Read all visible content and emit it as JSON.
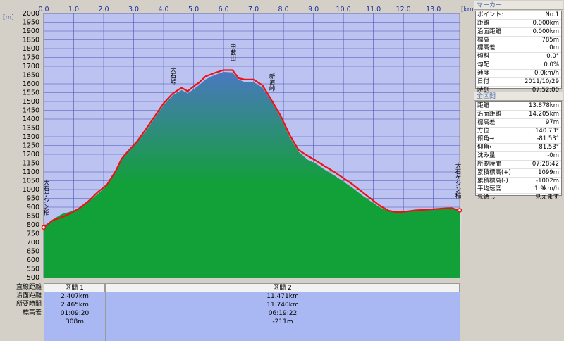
{
  "chart_data": {
    "type": "area",
    "x_unit_label": "[km]",
    "y_unit_label": "[m]",
    "xlim": [
      0,
      13.878
    ],
    "ylim": [
      500,
      2000
    ],
    "x_ticks": [
      "0.0",
      "1.0",
      "2.0",
      "3.0",
      "4.0",
      "5.0",
      "6.0",
      "7.0",
      "8.0",
      "9.0",
      "10.0",
      "11.0",
      "12.0",
      "13.0"
    ],
    "y_ticks": [
      "500",
      "550",
      "600",
      "650",
      "700",
      "750",
      "800",
      "850",
      "900",
      "950",
      "1000",
      "1050",
      "1100",
      "1150",
      "1200",
      "1250",
      "1300",
      "1350",
      "1400",
      "1450",
      "1500",
      "1550",
      "1600",
      "1650",
      "1700",
      "1750",
      "1800",
      "1850",
      "1900",
      "1950",
      "2000"
    ],
    "x": [
      0,
      0.3,
      0.6,
      0.9,
      1.2,
      1.5,
      1.8,
      2.1,
      2.4,
      2.6,
      2.8,
      3.1,
      3.4,
      3.7,
      4.0,
      4.3,
      4.6,
      4.8,
      5.0,
      5.2,
      5.4,
      5.7,
      6.0,
      6.3,
      6.5,
      6.7,
      7.0,
      7.3,
      7.6,
      7.9,
      8.2,
      8.5,
      8.8,
      9.1,
      9.4,
      9.7,
      10.0,
      10.3,
      10.6,
      10.9,
      11.2,
      11.5,
      11.8,
      12.1,
      12.4,
      12.7,
      13.0,
      13.3,
      13.6,
      13.878
    ],
    "y": [
      785,
      830,
      860,
      875,
      895,
      930,
      975,
      1020,
      1100,
      1170,
      1210,
      1265,
      1330,
      1405,
      1480,
      1535,
      1565,
      1545,
      1570,
      1595,
      1625,
      1650,
      1668,
      1665,
      1625,
      1610,
      1610,
      1580,
      1500,
      1410,
      1300,
      1215,
      1170,
      1145,
      1110,
      1080,
      1045,
      1010,
      970,
      935,
      900,
      878,
      878,
      880,
      885,
      888,
      892,
      894,
      895,
      882
    ],
    "track": [
      785,
      825,
      842,
      865,
      895,
      935,
      985,
      1025,
      1105,
      1175,
      1215,
      1270,
      1340,
      1415,
      1490,
      1545,
      1578,
      1558,
      1585,
      1610,
      1642,
      1662,
      1678,
      1678,
      1632,
      1625,
      1625,
      1592,
      1508,
      1420,
      1312,
      1225,
      1192,
      1162,
      1130,
      1100,
      1065,
      1030,
      990,
      950,
      910,
      880,
      870,
      875,
      882,
      885,
      888,
      892,
      895,
      882
    ],
    "annotations": [
      {
        "text": "大石ゲシン稲",
        "x": 0
      },
      {
        "text": "大石峠",
        "x": 4.3
      },
      {
        "text": "中藪山",
        "x": 6.3
      },
      {
        "text": "新道峠",
        "x": 7.6
      },
      {
        "text": "大石ゲシン稲",
        "x": 13.878
      }
    ]
  },
  "colors": {
    "plot_bg": "#bcc3f0",
    "grid": "#4a52b8",
    "track": "#ee1111",
    "terrain_top": "#4a78c0",
    "terrain_bottom": "#12a038",
    "shadow": "#d8d8d8",
    "section_bg": "#a9b7f2"
  },
  "bottom_labels": [
    "直線距離",
    "沿面距離",
    "所要時間",
    "標高差"
  ],
  "sections": [
    {
      "title": "区間 1",
      "values": [
        "2.407km",
        "2.465km",
        "01:09:20",
        "308m"
      ]
    },
    {
      "title": "区間 2",
      "values": [
        "11.471km",
        "11.740km",
        "06:19:22",
        "-211m"
      ]
    }
  ],
  "marker_panel": {
    "header": "マーカー",
    "rows": [
      {
        "label": "ポイント:",
        "value": "No.1"
      },
      {
        "label": "距離",
        "value": "0.000km"
      },
      {
        "label": "沿面距離",
        "value": "0.000km"
      },
      {
        "label": "標高",
        "value": "785m"
      },
      {
        "label": "標高差",
        "value": "0m"
      },
      {
        "label": "傾斜",
        "value": "0.0°"
      },
      {
        "label": "勾配",
        "value": "0.0%"
      },
      {
        "label": "速度",
        "value": "0.0km/h"
      },
      {
        "label": "日付",
        "value": "2011/10/29"
      },
      {
        "label": "時刻",
        "value": "07:52:00"
      }
    ]
  },
  "total_panel": {
    "header": "全区間",
    "rows": [
      {
        "label": "距離",
        "value": "13.878km"
      },
      {
        "label": "沿面距離",
        "value": "14.205km"
      },
      {
        "label": "標高差",
        "value": "97m"
      },
      {
        "label": "方位",
        "value": "140.73°"
      },
      {
        "label": "俯角→",
        "value": "-81.53°"
      },
      {
        "label": "仰角←",
        "value": "81.53°"
      },
      {
        "label": "沈み量",
        "value": "-0m"
      },
      {
        "label": "所要時間",
        "value": "07:28:42"
      },
      {
        "label": "累積標高(+)",
        "value": "1099m"
      },
      {
        "label": "累積標高(-)",
        "value": "-1002m"
      },
      {
        "label": "平均速度",
        "value": "1.9km/h"
      },
      {
        "label": "見通し",
        "value": "見えます"
      }
    ]
  }
}
